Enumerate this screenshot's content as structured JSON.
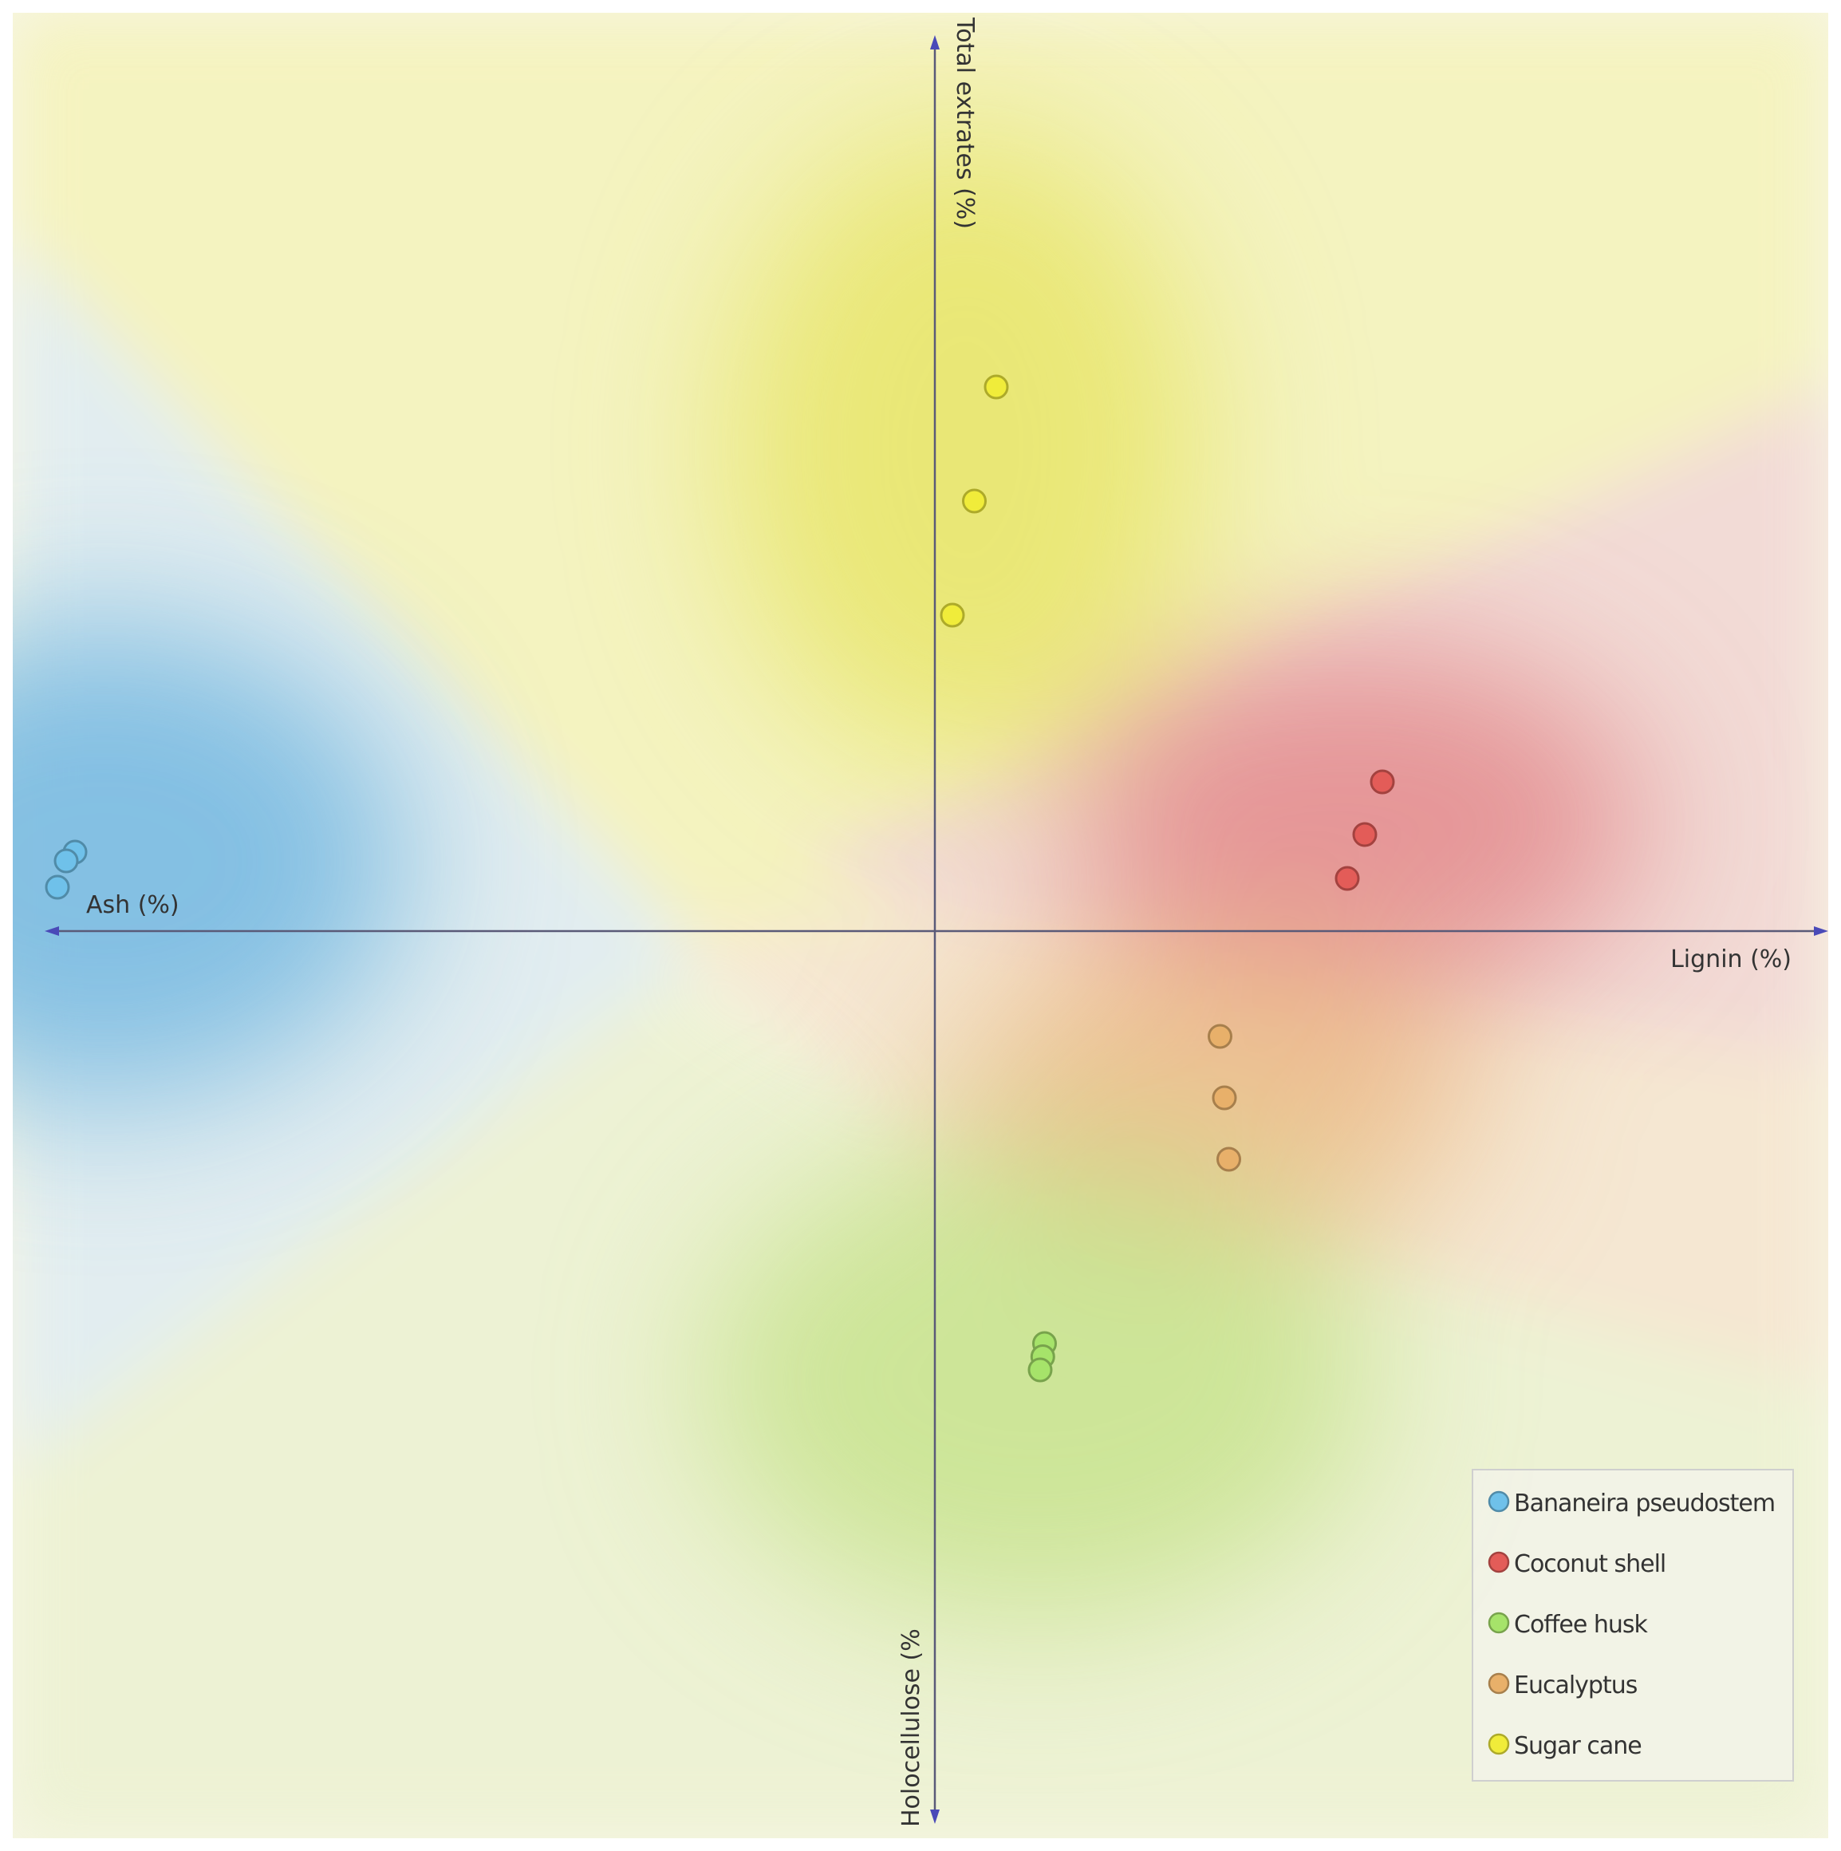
{
  "chart_data": {
    "type": "scatter",
    "title": "",
    "axes": {
      "right": "Lignin (%)",
      "left": "Ash (%)",
      "top": "Total extrates  (%)",
      "bottom": "Holocellulose (%"
    },
    "xlim": [
      -1.02,
      1.02
    ],
    "ylim": [
      -1.02,
      1.02
    ],
    "grid": false,
    "legend_position": "bottom-right",
    "series": [
      {
        "name": "Bananeira pseudostem",
        "color": "#6fc1ea",
        "region_color": "#7cc1e6",
        "points": [
          [
            -0.98,
            0.09
          ],
          [
            -0.99,
            0.08
          ],
          [
            -1.0,
            0.05
          ]
        ]
      },
      {
        "name": "Coconut shell",
        "color": "#e35c58",
        "region_color": "#e4898a",
        "points": [
          [
            0.51,
            0.17
          ],
          [
            0.49,
            0.11
          ],
          [
            0.47,
            0.06
          ]
        ]
      },
      {
        "name": "Coffee husk",
        "color": "#a6e36a",
        "region_color": "#c8e497",
        "points": [
          [
            0.125,
            -0.47
          ],
          [
            0.123,
            -0.485
          ],
          [
            0.12,
            -0.5
          ]
        ]
      },
      {
        "name": "Eucalyptus",
        "color": "#e8b06a",
        "region_color": "#edc48f",
        "points": [
          [
            0.325,
            -0.12
          ],
          [
            0.33,
            -0.19
          ],
          [
            0.335,
            -0.26
          ]
        ]
      },
      {
        "name": "Sugar cane",
        "color": "#f0ec3a",
        "region_color": "#ebe978",
        "points": [
          [
            0.07,
            0.62
          ],
          [
            0.045,
            0.49
          ],
          [
            0.02,
            0.36
          ]
        ]
      }
    ]
  }
}
